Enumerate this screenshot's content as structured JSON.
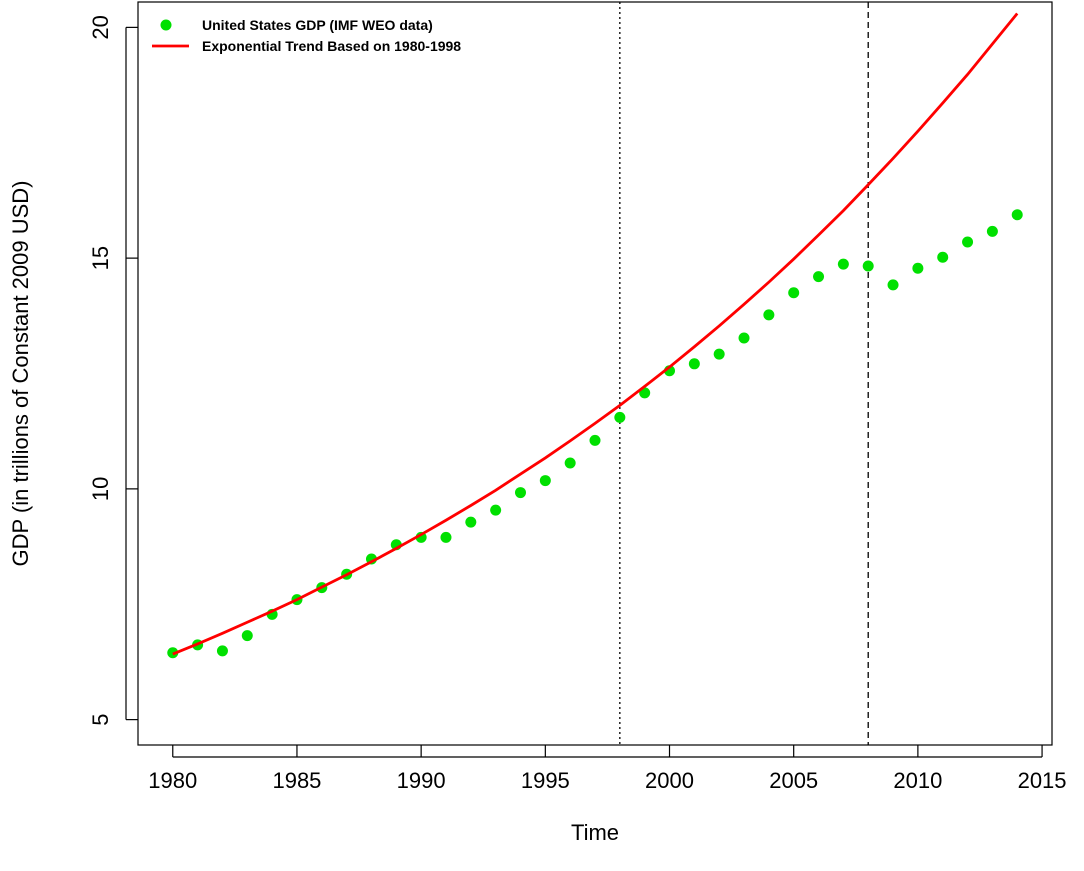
{
  "chart_data": {
    "type": "line",
    "title": "",
    "xlabel": "Time",
    "ylabel": "GDP (in trillions of Constant 2009 USD)",
    "xlim": [
      1978.6,
      2015.4
    ],
    "ylim": [
      4.45,
      20.55
    ],
    "x_ticks": [
      "1980",
      "1985",
      "1990",
      "1995",
      "2000",
      "2005",
      "2010",
      "2015"
    ],
    "y_ticks": [
      "5",
      "10",
      "15",
      "20"
    ],
    "grid": false,
    "legend_position": "top-left",
    "colors": {
      "points": "#00e000",
      "trend": "#ff0000",
      "reference_lines": "#000000"
    },
    "reference_lines": [
      {
        "x": 1998,
        "style": "dotted"
      },
      {
        "x": 2008,
        "style": "dashed"
      }
    ],
    "series": [
      {
        "name": "United States GDP (IMF WEO data)",
        "kind": "points",
        "x": [
          1980,
          1981,
          1982,
          1983,
          1984,
          1985,
          1986,
          1987,
          1988,
          1989,
          1990,
          1991,
          1992,
          1993,
          1994,
          1995,
          1996,
          1997,
          1998,
          1999,
          2000,
          2001,
          2002,
          2003,
          2004,
          2005,
          2006,
          2007,
          2008,
          2009,
          2010,
          2011,
          2012,
          2013,
          2014
        ],
        "values": [
          6.45,
          6.62,
          6.49,
          6.82,
          7.28,
          7.6,
          7.86,
          8.15,
          8.48,
          8.79,
          8.95,
          8.95,
          9.28,
          9.54,
          9.92,
          10.18,
          10.56,
          11.05,
          11.55,
          12.08,
          12.56,
          12.71,
          12.92,
          13.27,
          13.77,
          14.25,
          14.6,
          14.87,
          14.83,
          14.42,
          14.78,
          15.02,
          15.35,
          15.58,
          15.94
        ]
      },
      {
        "name": "Exponential Trend Based on 1980-1998",
        "kind": "line",
        "x": [
          1980,
          1981,
          1982,
          1983,
          1984,
          1985,
          1986,
          1987,
          1988,
          1989,
          1990,
          1991,
          1992,
          1993,
          1994,
          1995,
          1996,
          1997,
          1998,
          1999,
          2000,
          2001,
          2002,
          2003,
          2004,
          2005,
          2006,
          2007,
          2008,
          2009,
          2010,
          2011,
          2012,
          2013,
          2014
        ],
        "values": [
          6.42,
          6.64,
          6.87,
          7.11,
          7.35,
          7.6,
          7.87,
          8.14,
          8.42,
          8.71,
          9.01,
          9.32,
          9.64,
          9.97,
          10.32,
          10.67,
          11.04,
          11.42,
          11.81,
          12.22,
          12.64,
          13.08,
          13.53,
          14.0,
          14.48,
          14.98,
          15.5,
          16.03,
          16.59,
          17.16,
          17.75,
          18.36,
          18.98,
          19.64,
          20.3
        ]
      }
    ]
  }
}
